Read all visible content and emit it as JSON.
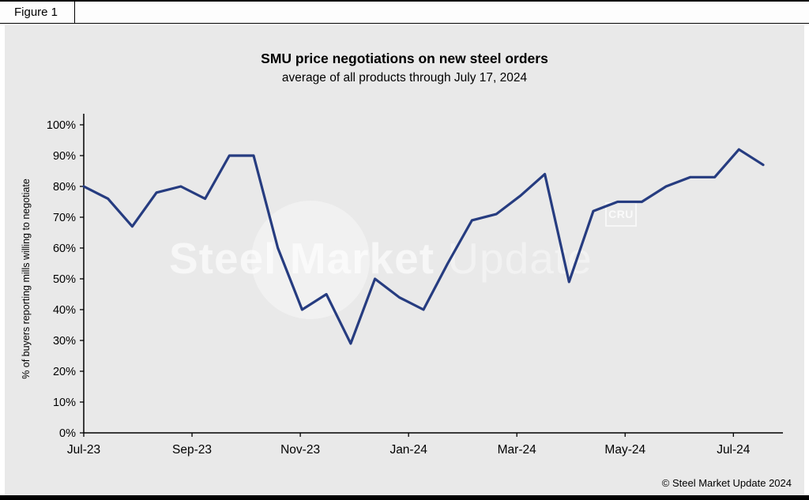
{
  "figure": {
    "label": "Figure 1"
  },
  "watermark": {
    "text_primary": "Steel Market",
    "text_secondary": "Update",
    "cru": "CRU"
  },
  "footer": {
    "copyright": "© Steel Market Update 2024"
  },
  "colors": {
    "line": "#263c80",
    "panel_bg": "#e9e9e9",
    "axis": "#000000"
  },
  "chart_data": {
    "type": "line",
    "title": "SMU price negotiations on new steel orders",
    "subtitle": "average of all products through July 17, 2024",
    "xlabel": "",
    "ylabel": "% of buyers reporting mills willing to negotiate",
    "ylim": [
      0,
      100
    ],
    "ytick_step": 10,
    "ytick_suffix": "%",
    "x_tick_labels": [
      "Jul-23",
      "Sep-23",
      "Nov-23",
      "Jan-24",
      "Mar-24",
      "May-24",
      "Jul-24"
    ],
    "x_tick_months": [
      0,
      2,
      4,
      6,
      8,
      10,
      12
    ],
    "x_span_months": 12.55,
    "grid": false,
    "legend": false,
    "series": [
      {
        "name": "% of buyers reporting mills willing to negotiate",
        "cadence": "biweekly, Jul 2023 through Jul 17 2024",
        "values": [
          80,
          76,
          67,
          78,
          80,
          76,
          90,
          90,
          60,
          40,
          45,
          29,
          50,
          44,
          40,
          55,
          69,
          71,
          77,
          84,
          49,
          72,
          75,
          75,
          80,
          83,
          83,
          92,
          87
        ]
      }
    ]
  }
}
